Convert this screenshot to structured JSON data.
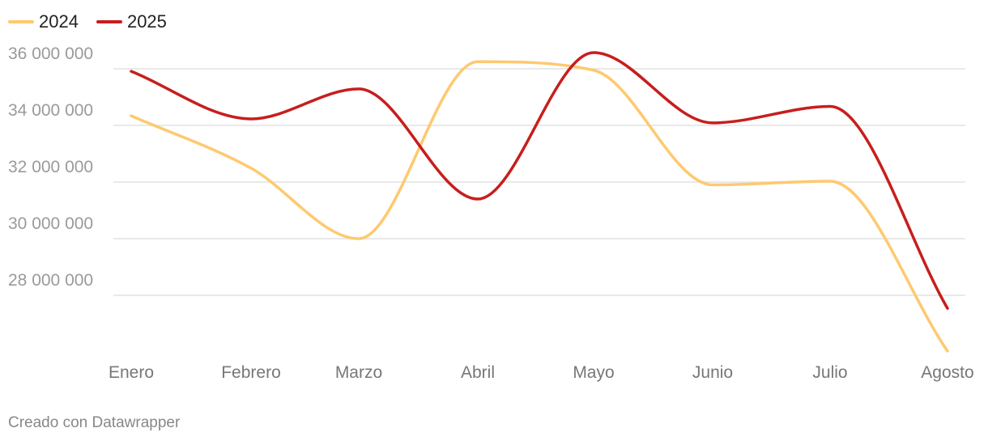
{
  "chart_data": {
    "type": "line",
    "title": "",
    "xlabel": "",
    "ylabel": "",
    "categories": [
      "Enero",
      "Febrero",
      "Marzo",
      "Abril",
      "Mayo",
      "Junio",
      "Julio",
      "Agosto"
    ],
    "series": [
      {
        "name": "2024",
        "color": "#fec96f",
        "values": [
          34340000,
          32490000,
          30000000,
          36250000,
          35950000,
          31900000,
          32030000,
          26030000
        ]
      },
      {
        "name": "2025",
        "color": "#c71e1d",
        "values": [
          35910000,
          34230000,
          35290000,
          31400000,
          36570000,
          34090000,
          34670000,
          27540000
        ]
      }
    ],
    "yticks": [
      28000000,
      30000000,
      32000000,
      34000000,
      36000000
    ],
    "ytick_labels": [
      "28 000 000",
      "30 000 000",
      "32 000 000",
      "34 000 000",
      "36 000 000"
    ],
    "ylim": [
      26000000,
      37000000
    ],
    "grid": true,
    "legend": "top-left"
  },
  "footer": "Creado con Datawrapper"
}
